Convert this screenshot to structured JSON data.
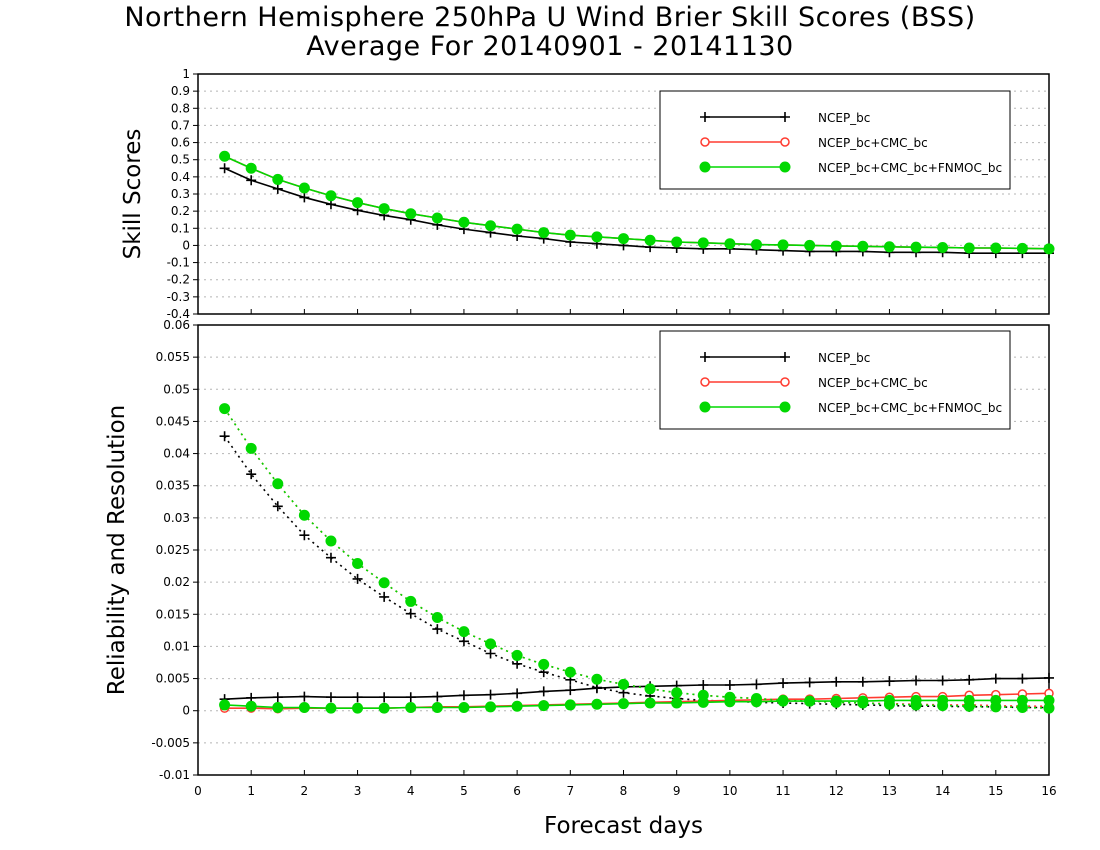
{
  "title": {
    "line1": "Northern Hemisphere 250hPa U Wind Brier Skill Scores (BSS)",
    "line2": "Average For 20140901 - 20141130"
  },
  "colors": {
    "ncep": "#000000",
    "cmc": "#ff3b30",
    "fnmoc": "#00d800"
  },
  "chart_data": [
    {
      "type": "line",
      "ylabel": "Skill Scores",
      "ylim": [
        -0.4,
        1
      ],
      "yticks": [
        "-0.4",
        "-0.3",
        "-0.2",
        "-0.1",
        "0",
        "0.1",
        "0.2",
        "0.3",
        "0.4",
        "0.5",
        "0.6",
        "0.7",
        "0.8",
        "0.9",
        "1"
      ],
      "xlim": [
        0,
        16
      ],
      "grid": true,
      "legend_position": "top-right",
      "x": [
        0.5,
        1,
        1.5,
        2,
        2.5,
        3,
        3.5,
        4,
        4.5,
        5,
        5.5,
        6,
        6.5,
        7,
        7.5,
        8,
        8.5,
        9,
        9.5,
        10,
        10.5,
        11,
        11.5,
        12,
        12.5,
        13,
        13.5,
        14,
        14.5,
        15,
        15.5,
        16
      ],
      "series": [
        {
          "name": "NCEP_bc",
          "color": "#000000",
          "marker": "plus",
          "style": "solid",
          "values": [
            0.45,
            0.38,
            0.33,
            0.28,
            0.24,
            0.205,
            0.175,
            0.15,
            0.12,
            0.095,
            0.075,
            0.055,
            0.04,
            0.02,
            0.01,
            0.0,
            -0.01,
            -0.015,
            -0.02,
            -0.02,
            -0.025,
            -0.03,
            -0.035,
            -0.035,
            -0.035,
            -0.04,
            -0.04,
            -0.04,
            -0.045,
            -0.045,
            -0.045,
            -0.045
          ]
        },
        {
          "name": "NCEP_bc+CMC_bc",
          "color": "#ff3b30",
          "marker": "circle-open",
          "style": "solid",
          "values": [
            0.52,
            0.45,
            0.385,
            0.335,
            0.29,
            0.25,
            0.215,
            0.185,
            0.16,
            0.135,
            0.115,
            0.095,
            0.075,
            0.06,
            0.05,
            0.04,
            0.03,
            0.02,
            0.015,
            0.01,
            0.005,
            0.003,
            0.0,
            -0.003,
            -0.005,
            -0.008,
            -0.01,
            -0.012,
            -0.015,
            -0.015,
            -0.017,
            -0.02
          ]
        },
        {
          "name": "NCEP_bc+CMC_bc+FNMOC_bc",
          "color": "#00d800",
          "marker": "circle-filled",
          "style": "solid",
          "values": [
            0.52,
            0.45,
            0.385,
            0.335,
            0.29,
            0.25,
            0.215,
            0.185,
            0.16,
            0.135,
            0.115,
            0.095,
            0.075,
            0.06,
            0.05,
            0.04,
            0.03,
            0.02,
            0.015,
            0.01,
            0.005,
            0.003,
            0.0,
            -0.003,
            -0.005,
            -0.008,
            -0.01,
            -0.012,
            -0.015,
            -0.015,
            -0.017,
            -0.02
          ]
        }
      ]
    },
    {
      "type": "line",
      "ylabel": "Reliability and Resolution",
      "xlabel": "Forecast days",
      "ylim": [
        -0.01,
        0.06
      ],
      "yticks": [
        "-0.01",
        "-0.005",
        "0",
        "0.005",
        "0.01",
        "0.015",
        "0.02",
        "0.025",
        "0.03",
        "0.035",
        "0.04",
        "0.045",
        "0.05",
        "0.055",
        "0.06"
      ],
      "xlim": [
        0,
        16
      ],
      "xticks": [
        "0",
        "1",
        "2",
        "3",
        "4",
        "5",
        "6",
        "7",
        "8",
        "9",
        "10",
        "11",
        "12",
        "13",
        "14",
        "15",
        "16"
      ],
      "grid": true,
      "legend_position": "top-right",
      "x": [
        0.5,
        1,
        1.5,
        2,
        2.5,
        3,
        3.5,
        4,
        4.5,
        5,
        5.5,
        6,
        6.5,
        7,
        7.5,
        8,
        8.5,
        9,
        9.5,
        10,
        10.5,
        11,
        11.5,
        12,
        12.5,
        13,
        13.5,
        14,
        14.5,
        15,
        15.5,
        16
      ],
      "series": [
        {
          "name": "NCEP_bc",
          "role": "reliability",
          "color": "#000000",
          "marker": "plus",
          "style": "solid",
          "values": [
            0.0018,
            0.002,
            0.0021,
            0.0022,
            0.0021,
            0.0021,
            0.0021,
            0.0021,
            0.0022,
            0.0024,
            0.0025,
            0.0027,
            0.003,
            0.0032,
            0.0035,
            0.0037,
            0.0038,
            0.0039,
            0.004,
            0.004,
            0.0041,
            0.0043,
            0.0044,
            0.0045,
            0.0045,
            0.0046,
            0.0047,
            0.0047,
            0.0048,
            0.005,
            0.005,
            0.0051
          ]
        },
        {
          "name": "NCEP_bc",
          "role": "resolution",
          "color": "#000000",
          "marker": "plus",
          "style": "dotted",
          "values": [
            0.0427,
            0.0368,
            0.0318,
            0.0273,
            0.0238,
            0.0205,
            0.0177,
            0.0151,
            0.0127,
            0.0108,
            0.0089,
            0.0073,
            0.006,
            0.0048,
            0.0036,
            0.0028,
            0.0023,
            0.0019,
            0.0016,
            0.0015,
            0.0013,
            0.0012,
            0.0011,
            0.001,
            0.0009,
            0.0008,
            0.0007,
            0.0007,
            0.0006,
            0.0006,
            0.0005,
            0.0005
          ]
        },
        {
          "name": "NCEP_bc+CMC_bc",
          "role": "reliability",
          "color": "#ff3b30",
          "marker": "circle-open",
          "style": "solid",
          "values": [
            0.0004,
            0.0004,
            0.0003,
            0.0004,
            0.0004,
            0.0004,
            0.0004,
            0.0005,
            0.0006,
            0.0006,
            0.0007,
            0.0008,
            0.0009,
            0.001,
            0.0011,
            0.0012,
            0.0013,
            0.0014,
            0.0015,
            0.0016,
            0.0017,
            0.0018,
            0.0018,
            0.0019,
            0.002,
            0.0021,
            0.0022,
            0.0022,
            0.0024,
            0.0025,
            0.0026,
            0.0027
          ]
        },
        {
          "name": "NCEP_bc+CMC_bc",
          "role": "resolution",
          "color": "#ff3b30",
          "marker": "circle-open",
          "style": "dotted",
          "values": [
            0.047,
            0.0408,
            0.0353,
            0.0304,
            0.0264,
            0.0229,
            0.0199,
            0.017,
            0.0145,
            0.0123,
            0.0104,
            0.0086,
            0.0072,
            0.006,
            0.0049,
            0.0041,
            0.0034,
            0.0028,
            0.0024,
            0.0021,
            0.0019,
            0.0016,
            0.0015,
            0.0013,
            0.0012,
            0.0011,
            0.001,
            0.0009,
            0.0009,
            0.0008,
            0.0007,
            0.0007
          ]
        },
        {
          "name": "NCEP_bc+CMC_bc+FNMOC_bc",
          "role": "reliability",
          "color": "#00d800",
          "marker": "circle-filled",
          "style": "solid",
          "values": [
            0.0009,
            0.0007,
            0.0005,
            0.0005,
            0.0004,
            0.0004,
            0.0004,
            0.0005,
            0.0005,
            0.0005,
            0.0006,
            0.0007,
            0.0008,
            0.0009,
            0.001,
            0.0011,
            0.0012,
            0.0012,
            0.0013,
            0.0014,
            0.0014,
            0.0015,
            0.0015,
            0.0015,
            0.0015,
            0.0016,
            0.0016,
            0.0016,
            0.0016,
            0.0016,
            0.0016,
            0.0016
          ]
        },
        {
          "name": "NCEP_bc+CMC_bc+FNMOC_bc",
          "role": "resolution",
          "color": "#00d800",
          "marker": "circle-filled",
          "style": "dotted",
          "values": [
            0.047,
            0.0408,
            0.0353,
            0.0304,
            0.0264,
            0.0229,
            0.0199,
            0.017,
            0.0145,
            0.0123,
            0.0104,
            0.0086,
            0.0072,
            0.006,
            0.0049,
            0.0041,
            0.0034,
            0.0028,
            0.0024,
            0.0021,
            0.0019,
            0.0016,
            0.0015,
            0.0013,
            0.0012,
            0.001,
            0.0009,
            0.0008,
            0.0007,
            0.0006,
            0.0005,
            0.0004
          ]
        }
      ]
    }
  ]
}
